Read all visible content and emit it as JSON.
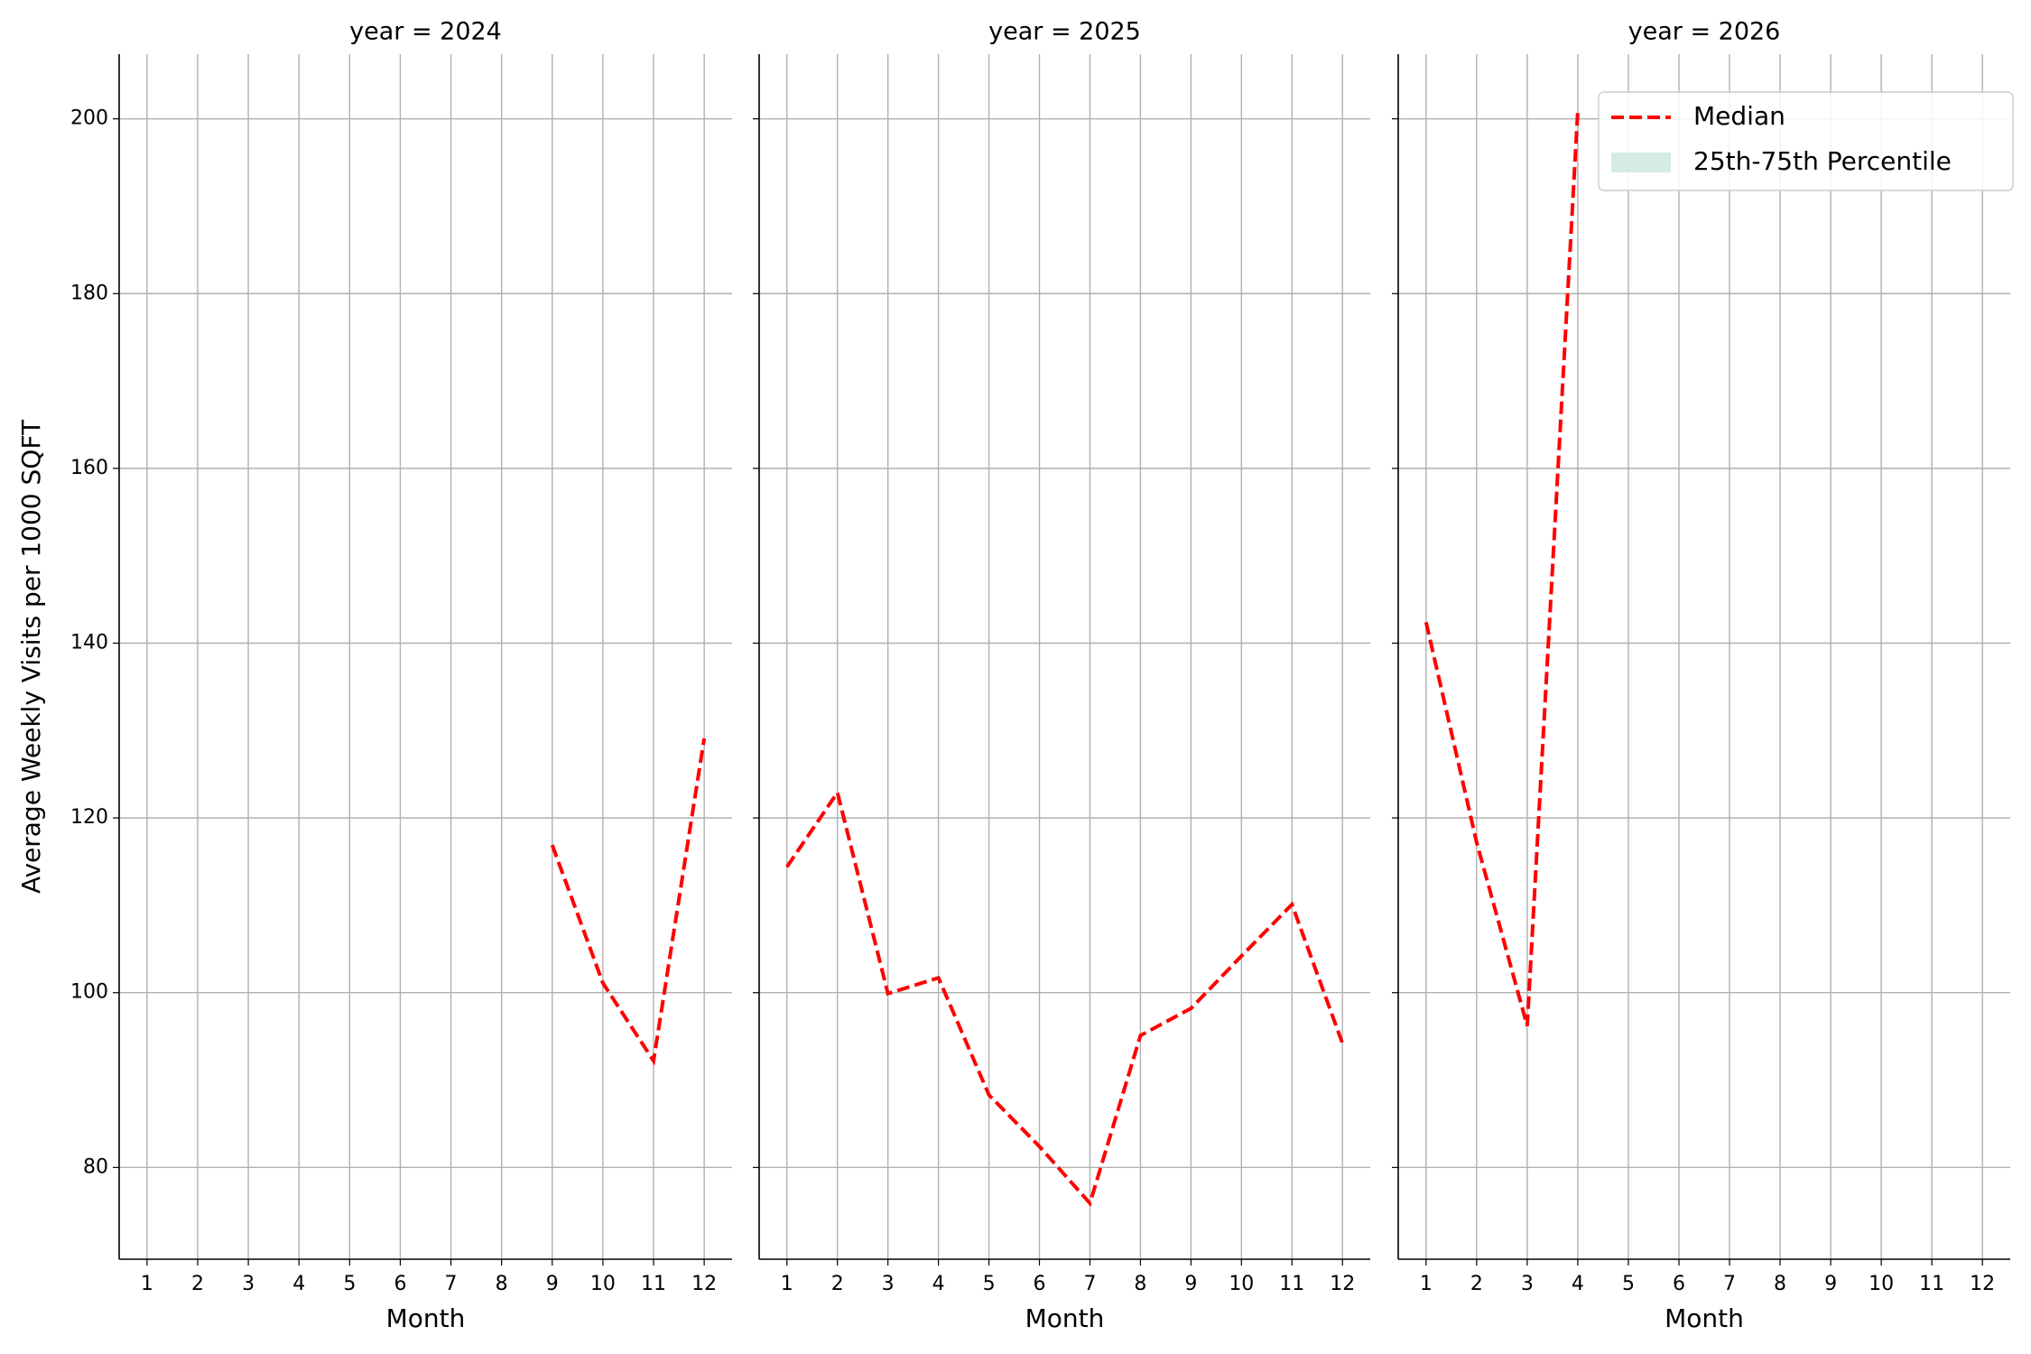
{
  "chart_data": [
    {
      "type": "line",
      "title": "year = 2024",
      "x_label": "Month",
      "y_label": "Average Weekly Visits per 1000 SQFT",
      "x": [
        1,
        2,
        3,
        4,
        5,
        6,
        7,
        8,
        9,
        10,
        11,
        12
      ],
      "xlim": [
        0.45,
        12.55
      ],
      "xticks": [
        1,
        2,
        3,
        4,
        5,
        6,
        7,
        8,
        9,
        10,
        11,
        12
      ],
      "ylim": [
        69.5,
        207.4
      ],
      "yticks": [
        80,
        100,
        120,
        140,
        160,
        180,
        200
      ],
      "grid": true,
      "series": [
        {
          "name": "Median",
          "color": "#ff0000",
          "style": "dashed",
          "values": [
            null,
            null,
            null,
            null,
            null,
            null,
            null,
            null,
            116.9,
            101.1,
            92.2,
            129.1
          ]
        }
      ]
    },
    {
      "type": "line",
      "title": "year = 2025",
      "x_label": "Month",
      "x": [
        1,
        2,
        3,
        4,
        5,
        6,
        7,
        8,
        9,
        10,
        11,
        12
      ],
      "xlim": [
        0.45,
        12.55
      ],
      "xticks": [
        1,
        2,
        3,
        4,
        5,
        6,
        7,
        8,
        9,
        10,
        11,
        12
      ],
      "ylim": [
        69.5,
        207.4
      ],
      "yticks": [
        80,
        100,
        120,
        140,
        160,
        180,
        200
      ],
      "grid": true,
      "series": [
        {
          "name": "Median",
          "color": "#ff0000",
          "style": "dashed",
          "values": [
            114.4,
            122.9,
            99.9,
            101.7,
            88.3,
            82.4,
            75.9,
            95.1,
            98.2,
            104.2,
            110.1,
            94.2
          ]
        }
      ]
    },
    {
      "type": "line",
      "title": "year = 2026",
      "x_label": "Month",
      "x": [
        1,
        2,
        3,
        4,
        5,
        6,
        7,
        8,
        9,
        10,
        11,
        12
      ],
      "xlim": [
        0.45,
        12.55
      ],
      "xticks": [
        1,
        2,
        3,
        4,
        5,
        6,
        7,
        8,
        9,
        10,
        11,
        12
      ],
      "ylim": [
        69.5,
        207.4
      ],
      "yticks": [
        80,
        100,
        120,
        140,
        160,
        180,
        200
      ],
      "grid": true,
      "legend": "upper right",
      "series": [
        {
          "name": "Median",
          "color": "#ff0000",
          "style": "dashed",
          "values": [
            142.4,
            117.2,
            96.2,
            200.9,
            null,
            null,
            null,
            null,
            null,
            null,
            null,
            null
          ]
        },
        {
          "name": "25th-75th Percentile",
          "color": "#d5ece5",
          "style": "band",
          "values": [
            null,
            null,
            null,
            null,
            null,
            null,
            null,
            null,
            null,
            null,
            null,
            null
          ]
        }
      ]
    }
  ]
}
